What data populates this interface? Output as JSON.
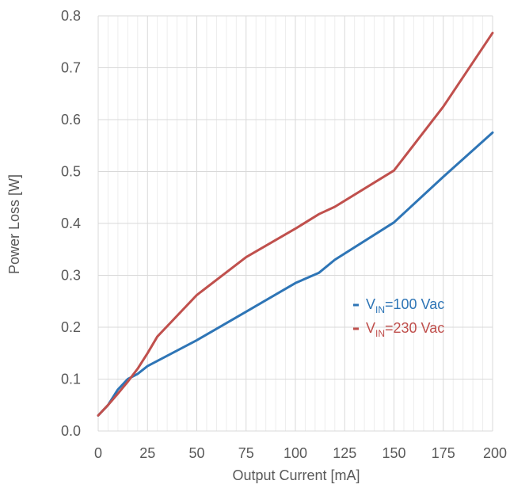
{
  "chart_data": {
    "type": "line",
    "xlabel": "Output Current [mA]",
    "ylabel": "Power Loss [W]",
    "xlim": [
      0,
      200
    ],
    "ylim": [
      0,
      0.8
    ],
    "x_ticks": [
      "0",
      "25",
      "50",
      "75",
      "100",
      "125",
      "150",
      "175",
      "200"
    ],
    "y_ticks": [
      "0.0",
      "0.1",
      "0.2",
      "0.3",
      "0.4",
      "0.5",
      "0.6",
      "0.7",
      "0.8"
    ],
    "grid": true,
    "legend_position": "right-middle",
    "series": [
      {
        "name": "VIN=100 Vac",
        "legend": {
          "prefix": "V",
          "sub": "IN",
          "suffix": "=100 Vac"
        },
        "color": "#2E75B6",
        "x": [
          0,
          5,
          10,
          15,
          20,
          25,
          50,
          75,
          100,
          112,
          120,
          150,
          175,
          200
        ],
        "y": [
          0.03,
          0.05,
          0.08,
          0.1,
          0.11,
          0.125,
          0.175,
          0.23,
          0.285,
          0.305,
          0.33,
          0.402,
          0.49,
          0.575
        ]
      },
      {
        "name": "VIN=230 Vac",
        "legend": {
          "prefix": "V",
          "sub": "IN",
          "suffix": "=230 Vac"
        },
        "color": "#C0504D",
        "x": [
          0,
          5,
          10,
          15,
          20,
          25,
          30,
          37,
          50,
          75,
          100,
          112,
          120,
          150,
          175,
          200
        ],
        "y": [
          0.03,
          0.05,
          0.072,
          0.095,
          0.12,
          0.15,
          0.182,
          0.21,
          0.262,
          0.335,
          0.39,
          0.418,
          0.432,
          0.502,
          0.625,
          0.767
        ]
      }
    ]
  }
}
